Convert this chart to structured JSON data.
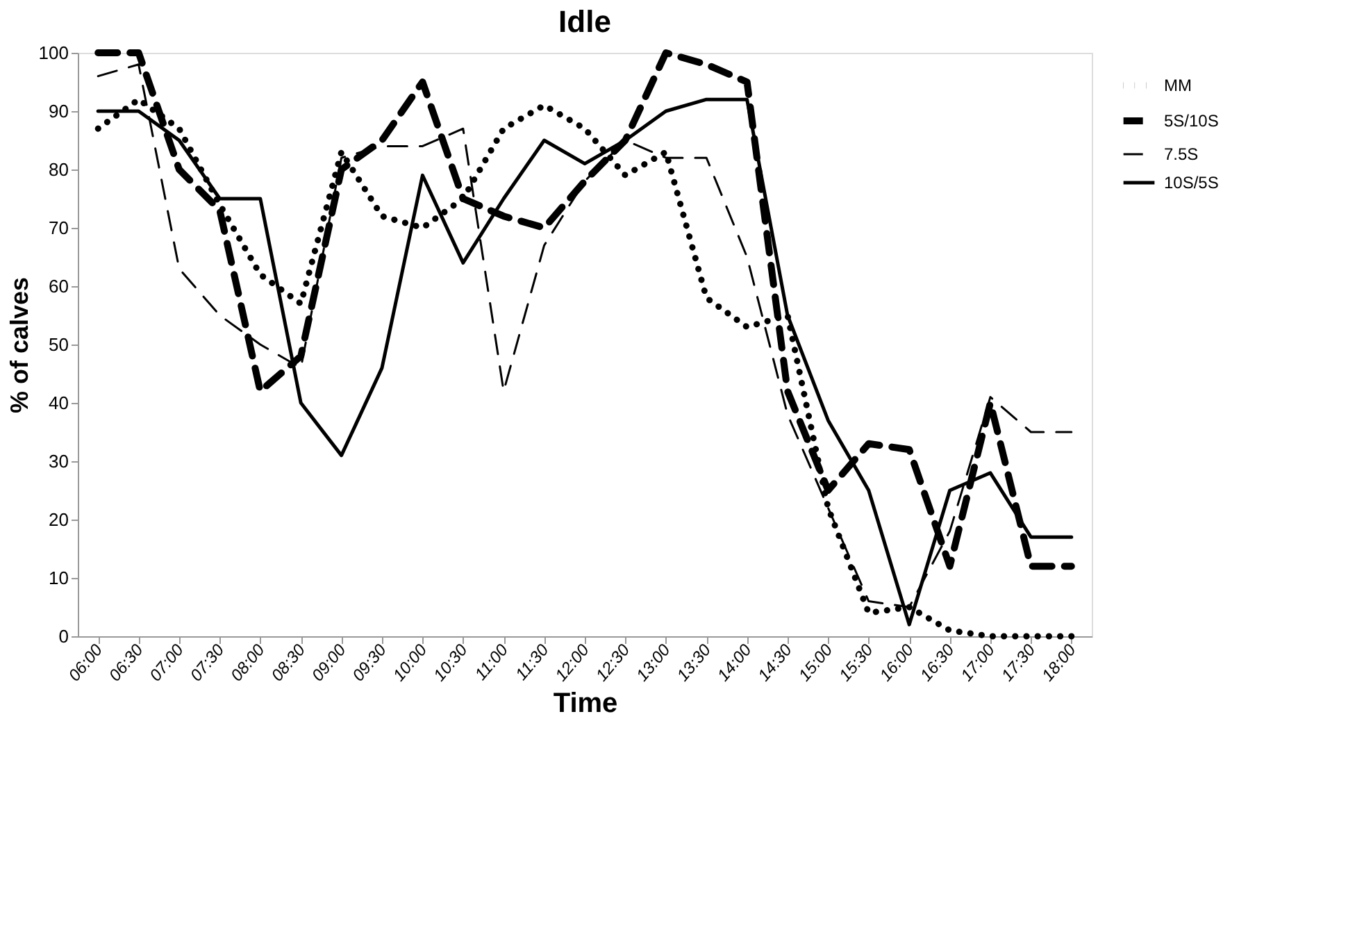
{
  "chart_data": {
    "type": "line",
    "title": "Idle",
    "xlabel": "Time",
    "ylabel": "% of calves",
    "categories": [
      "06:00",
      "06:30",
      "07:00",
      "07:30",
      "08:00",
      "08:30",
      "09:00",
      "09:30",
      "10:00",
      "10:30",
      "11:00",
      "11:30",
      "12:00",
      "12:30",
      "13:00",
      "13:30",
      "14:00",
      "14:30",
      "15:00",
      "15:30",
      "16:00",
      "16:30",
      "17:00",
      "17:30",
      "18:00"
    ],
    "series": [
      {
        "name": "MM",
        "color": "#000000",
        "line_style": "dotted",
        "values": [
          87,
          92,
          87,
          74,
          62,
          57,
          83,
          72,
          70,
          75,
          87,
          91,
          87,
          79,
          83,
          58,
          53,
          55,
          22,
          4,
          5,
          1,
          0,
          0,
          0
        ]
      },
      {
        "name": "5S/10S",
        "color": "#000000",
        "line_style": "dashed",
        "values": [
          100,
          100,
          80,
          73,
          42,
          48,
          80,
          85,
          95,
          75,
          72,
          70,
          78,
          85,
          100,
          98,
          95,
          42,
          25,
          33,
          32,
          12,
          40,
          12,
          12
        ]
      },
      {
        "name": "7.5S",
        "color": "#000000",
        "line_style": "dashed",
        "values": [
          96,
          98,
          63,
          55,
          50,
          46,
          82,
          84,
          84,
          87,
          42,
          67,
          78,
          85,
          82,
          82,
          65,
          38,
          22,
          6,
          5,
          18,
          41,
          35,
          35
        ]
      },
      {
        "name": "10S/5S",
        "color": "#000000",
        "line_style": "solid",
        "values": [
          90,
          90,
          85,
          75,
          75,
          40,
          31,
          46,
          79,
          64,
          75,
          85,
          81,
          85,
          90,
          92,
          92,
          55,
          37,
          25,
          2,
          25,
          28,
          17,
          17
        ]
      }
    ],
    "ylim": [
      0,
      100
    ],
    "yticks": [
      0,
      10,
      20,
      30,
      40,
      50,
      60,
      70,
      80,
      90,
      100
    ],
    "grid": false,
    "legend": "right",
    "marker": "none"
  }
}
